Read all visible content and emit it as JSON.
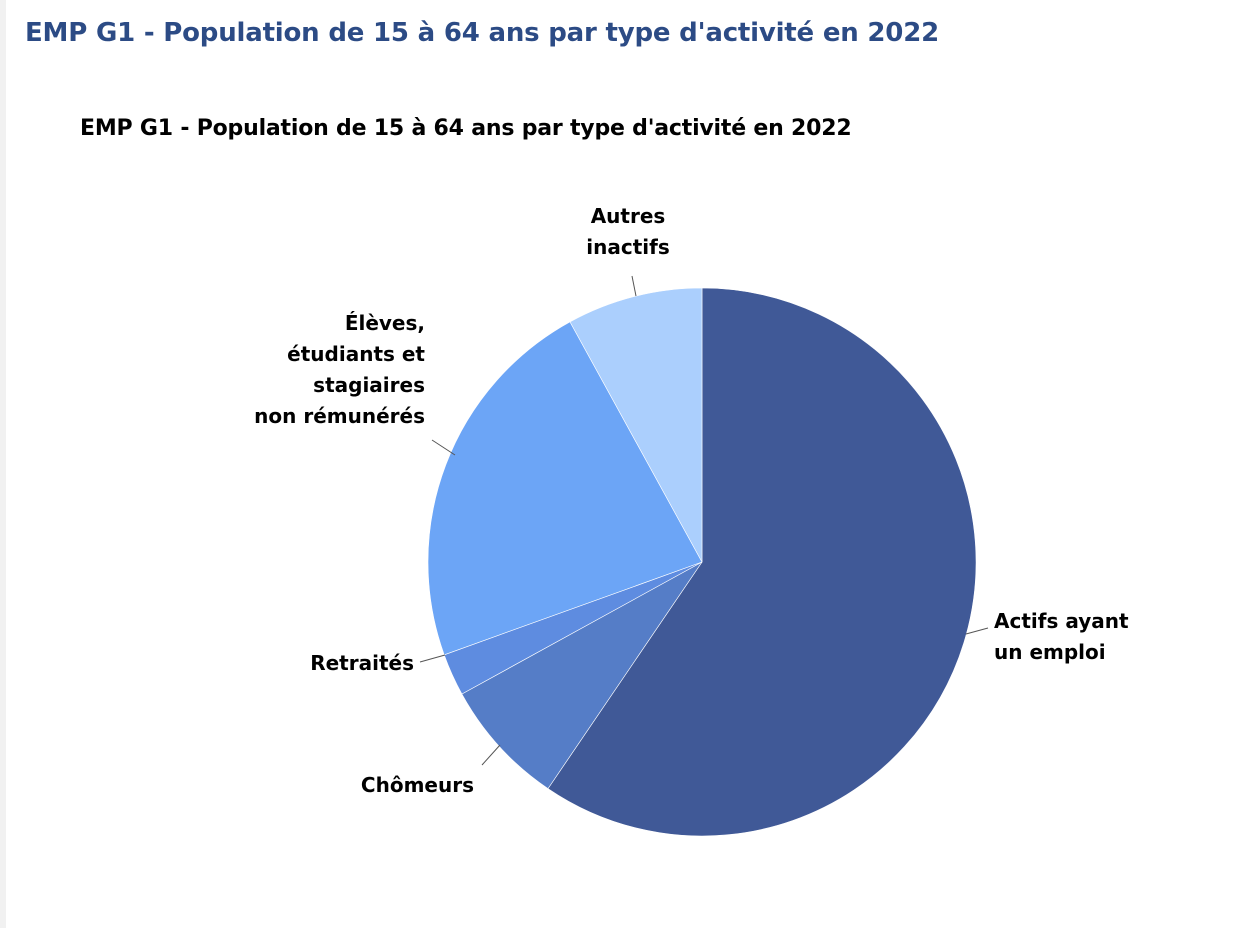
{
  "page": {
    "title": "EMP G1 - Population de 15 à 64 ans par type d'activité en 2022"
  },
  "chart_data": {
    "type": "pie",
    "title": "EMP G1 - Population de 15 à 64 ans par type d'activité en 2022",
    "start_angle_deg": 0,
    "direction": "clockwise",
    "slices": [
      {
        "label_lines": [
          "Actifs ayant",
          "un emploi"
        ],
        "value": 59.5,
        "color": "#405997"
      },
      {
        "label_lines": [
          "Chômeurs"
        ],
        "value": 7.5,
        "color": "#557dc7"
      },
      {
        "label_lines": [
          "Retraités"
        ],
        "value": 2.5,
        "color": "#5e8ce0"
      },
      {
        "label_lines": [
          "Élèves,",
          "étudiants et",
          "stagiaires",
          "non rémunérés"
        ],
        "value": 22.5,
        "color": "#6ca5f6"
      },
      {
        "label_lines": [
          "Autres",
          "inactifs"
        ],
        "value": 8.0,
        "color": "#abcffd"
      }
    ]
  }
}
